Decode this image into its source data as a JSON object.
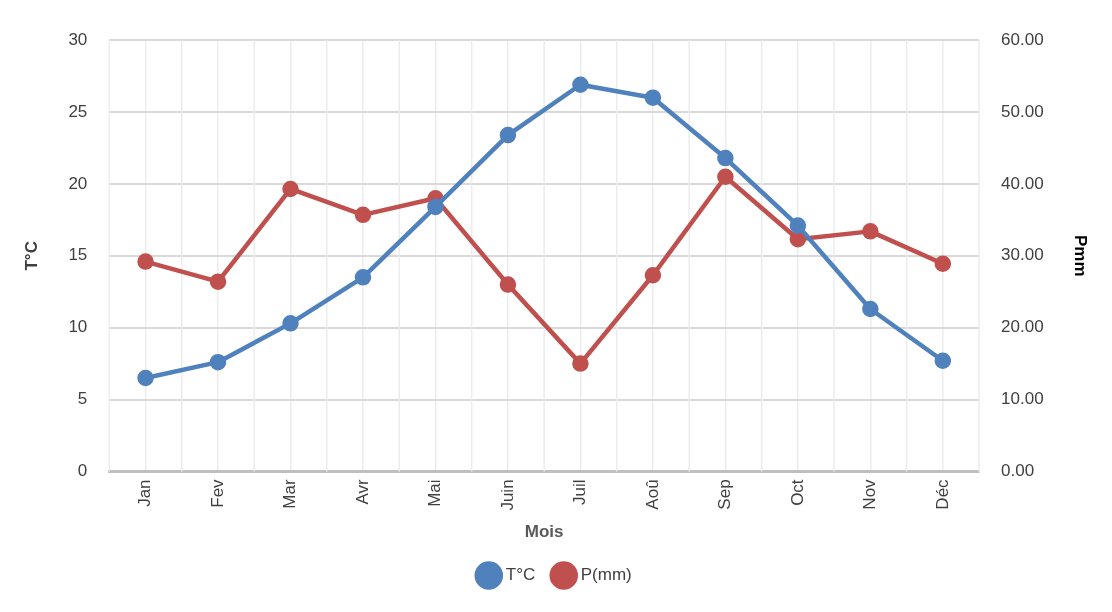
{
  "chart_data": {
    "type": "line",
    "xlabel": "Mois",
    "ylabel": "T°C",
    "y2label": "Pmm",
    "categories": [
      "Jan",
      "Fev",
      "Mar",
      "Avr",
      "Mai",
      "Juin",
      "Juil",
      "Aoû",
      "Sep",
      "Oct",
      "Nov",
      "Déc"
    ],
    "series": [
      {
        "name": "T°C",
        "color": "#4f81bd",
        "values": [
          6.5,
          7.6,
          10.3,
          13.5,
          18.4,
          23.4,
          26.9,
          26.0,
          21.8,
          17.1,
          11.3,
          7.7
        ]
      },
      {
        "name": "P(mm)",
        "color": "#c0504d",
        "axis": "y2",
        "values": [
          29.2,
          26.4,
          39.3,
          35.7,
          38.0,
          26.0,
          15.0,
          27.3,
          41.0,
          32.3,
          33.4,
          28.9
        ]
      }
    ],
    "ylim": [
      0,
      30
    ],
    "yticks": [
      0,
      5,
      10,
      15,
      20,
      25,
      30
    ],
    "y2lim": [
      0,
      60
    ],
    "y2ticks": [
      {
        "value": 0,
        "label": "0.00"
      },
      {
        "value": 10,
        "label": "10.00"
      },
      {
        "value": 20,
        "label": "20.00"
      },
      {
        "value": 30,
        "label": "30.00"
      },
      {
        "value": 40,
        "label": "40.00"
      },
      {
        "value": 50,
        "label": "50.00"
      },
      {
        "value": 60,
        "label": "60.00"
      }
    ],
    "grid": true,
    "legend": "bottom",
    "marker": "circle",
    "line_style": "solid"
  }
}
